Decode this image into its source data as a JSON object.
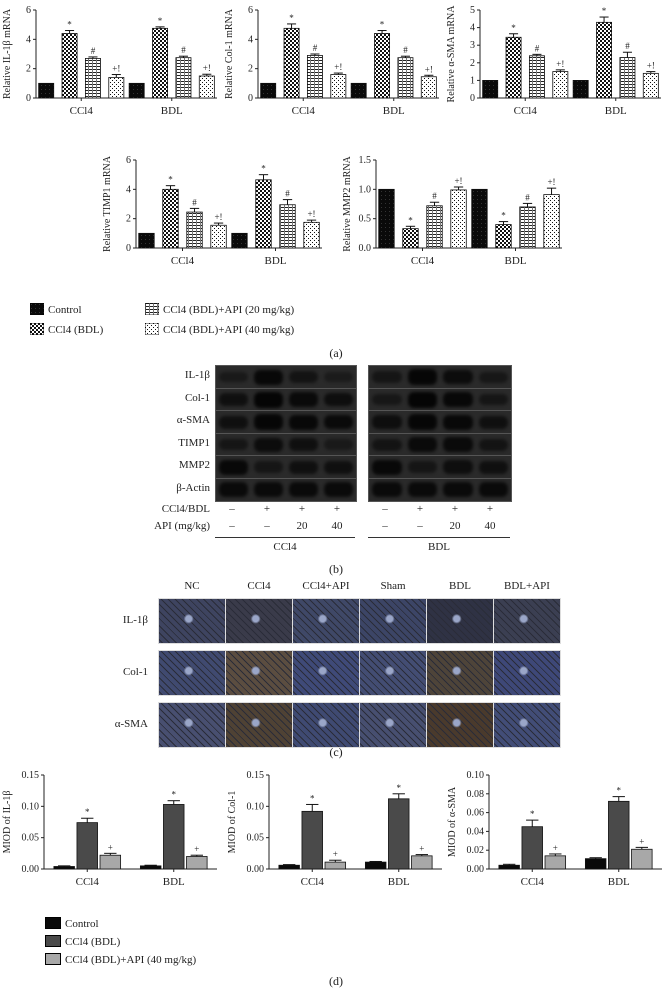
{
  "panels": {
    "a": {
      "caption": "(a)",
      "legend": [
        {
          "label": "Control",
          "pattern": "solid-black"
        },
        {
          "label": "CCl4 (BDL)",
          "pattern": "checker"
        },
        {
          "label": "CCl4 (BDL)+API (20 mg/kg)",
          "pattern": "hstripes"
        },
        {
          "label": "CCl4 (BDL)+API (40 mg/kg)",
          "pattern": "dots"
        }
      ]
    },
    "b": {
      "caption": "(b)",
      "proteins": [
        "IL-1β",
        "Col-1",
        "α-SMA",
        "TIMP1",
        "MMP2",
        "β-Actin"
      ],
      "row_labels": {
        "ccl4_bdl": "CCl4/BDL",
        "api": "API (mg/kg)"
      },
      "ccl4_bdl_signs": [
        "–",
        "+",
        "+",
        "+"
      ],
      "api_doses": [
        "–",
        "–",
        "20",
        "40"
      ],
      "groups": [
        "CCl4",
        "BDL"
      ]
    },
    "c": {
      "caption": "(c)",
      "columns": [
        "NC",
        "CCl4",
        "CCl4+API",
        "Sham",
        "BDL",
        "BDL+API"
      ],
      "rows": [
        "IL-1β",
        "Col-1",
        "α-SMA"
      ]
    },
    "d": {
      "caption": "(d)",
      "legend": [
        {
          "label": "Control",
          "color": "#0a0a0a"
        },
        {
          "label": "CCl4 (BDL)",
          "color": "#4a4a4a"
        },
        {
          "label": "CCl4 (BDL)+API (40 mg/kg)",
          "color": "#a8a8a8"
        }
      ]
    }
  },
  "chart_data": [
    {
      "id": "il1b-mrna",
      "panel": "a",
      "type": "bar",
      "ylabel": "Relative IL-1β mRNA",
      "ylim": [
        0,
        6
      ],
      "yticks": [
        0,
        2,
        4,
        6
      ],
      "categories": [
        "CCl4",
        "BDL"
      ],
      "series": [
        {
          "name": "Control",
          "values": [
            1.0,
            1.0
          ],
          "errors": [
            0,
            0
          ],
          "marks": [
            "",
            ""
          ]
        },
        {
          "name": "CCl4 (BDL)",
          "values": [
            4.4,
            4.75
          ],
          "errors": [
            0.2,
            0.1
          ],
          "marks": [
            "*",
            "*"
          ]
        },
        {
          "name": "CCl4 (BDL)+API (20 mg/kg)",
          "values": [
            2.7,
            2.75
          ],
          "errors": [
            0.1,
            0.1
          ],
          "marks": [
            "#",
            "#"
          ]
        },
        {
          "name": "CCl4 (BDL)+API (40 mg/kg)",
          "values": [
            1.4,
            1.5
          ],
          "errors": [
            0.2,
            0.12
          ],
          "marks": [
            "+!",
            "+!"
          ]
        }
      ]
    },
    {
      "id": "col1-mrna",
      "panel": "a",
      "type": "bar",
      "ylabel": "Relative Col-1 mRNA",
      "ylim": [
        0,
        6
      ],
      "yticks": [
        0,
        2,
        4,
        6
      ],
      "categories": [
        "CCl4",
        "BDL"
      ],
      "series": [
        {
          "name": "Control",
          "values": [
            1.0,
            1.0
          ],
          "errors": [
            0,
            0
          ],
          "marks": [
            "",
            ""
          ]
        },
        {
          "name": "CCl4 (BDL)",
          "values": [
            4.75,
            4.4
          ],
          "errors": [
            0.3,
            0.2
          ],
          "marks": [
            "*",
            "*"
          ]
        },
        {
          "name": "CCl4 (BDL)+API (20 mg/kg)",
          "values": [
            2.9,
            2.75
          ],
          "errors": [
            0.1,
            0.1
          ],
          "marks": [
            "#",
            "#"
          ]
        },
        {
          "name": "CCl4 (BDL)+API (40 mg/kg)",
          "values": [
            1.6,
            1.45
          ],
          "errors": [
            0.1,
            0.1
          ],
          "marks": [
            "+!",
            "+!"
          ]
        }
      ]
    },
    {
      "id": "asma-mrna",
      "panel": "a",
      "type": "bar",
      "ylabel": "Relative α-SMA mRNA",
      "ylim": [
        0,
        5
      ],
      "yticks": [
        0,
        1,
        2,
        3,
        4,
        5
      ],
      "categories": [
        "CCl4",
        "BDL"
      ],
      "series": [
        {
          "name": "Control",
          "values": [
            1.0,
            1.0
          ],
          "errors": [
            0,
            0
          ],
          "marks": [
            "",
            ""
          ]
        },
        {
          "name": "CCl4 (BDL)",
          "values": [
            3.45,
            4.3
          ],
          "errors": [
            0.2,
            0.3
          ],
          "marks": [
            "*",
            "*"
          ]
        },
        {
          "name": "CCl4 (BDL)+API (20 mg/kg)",
          "values": [
            2.4,
            2.3
          ],
          "errors": [
            0.08,
            0.3
          ],
          "marks": [
            "#",
            "#"
          ]
        },
        {
          "name": "CCl4 (BDL)+API (40 mg/kg)",
          "values": [
            1.5,
            1.4
          ],
          "errors": [
            0.1,
            0.1
          ],
          "marks": [
            "+!",
            "+!"
          ]
        }
      ]
    },
    {
      "id": "timp1-mrna",
      "panel": "a",
      "type": "bar",
      "ylabel": "Relative TIMP1 mRNA",
      "ylim": [
        0,
        6
      ],
      "yticks": [
        0,
        2,
        4,
        6
      ],
      "categories": [
        "CCl4",
        "BDL"
      ],
      "series": [
        {
          "name": "Control",
          "values": [
            1.0,
            1.0
          ],
          "errors": [
            0,
            0
          ],
          "marks": [
            "",
            ""
          ]
        },
        {
          "name": "CCl4 (BDL)",
          "values": [
            4.0,
            4.65
          ],
          "errors": [
            0.25,
            0.35
          ],
          "marks": [
            "*",
            "*"
          ]
        },
        {
          "name": "CCl4 (BDL)+API (20 mg/kg)",
          "values": [
            2.45,
            2.95
          ],
          "errors": [
            0.25,
            0.35
          ],
          "marks": [
            "#",
            "#"
          ]
        },
        {
          "name": "CCl4 (BDL)+API (40 mg/kg)",
          "values": [
            1.55,
            1.75
          ],
          "errors": [
            0.15,
            0.15
          ],
          "marks": [
            "+!",
            "+!"
          ]
        }
      ]
    },
    {
      "id": "mmp2-mrna",
      "panel": "a",
      "type": "bar",
      "ylabel": "Relative MMP2 mRNA",
      "ylim": [
        0,
        1.5
      ],
      "yticks": [
        0.0,
        0.5,
        1.0,
        1.5
      ],
      "tick_decimals": 1,
      "categories": [
        "CCl4",
        "BDL"
      ],
      "series": [
        {
          "name": "Control",
          "values": [
            1.0,
            1.0
          ],
          "errors": [
            0,
            0
          ],
          "marks": [
            "",
            ""
          ]
        },
        {
          "name": "CCl4 (BDL)",
          "values": [
            0.33,
            0.4
          ],
          "errors": [
            0.04,
            0.05
          ],
          "marks": [
            "*",
            "*"
          ]
        },
        {
          "name": "CCl4 (BDL)+API (20 mg/kg)",
          "values": [
            0.72,
            0.7
          ],
          "errors": [
            0.06,
            0.06
          ],
          "marks": [
            "#",
            "#"
          ]
        },
        {
          "name": "CCl4 (BDL)+API (40 mg/kg)",
          "values": [
            0.99,
            0.91
          ],
          "errors": [
            0.05,
            0.11
          ],
          "marks": [
            "+!",
            "+!"
          ]
        }
      ]
    },
    {
      "id": "miod-il1b",
      "panel": "d",
      "type": "bar",
      "ylabel": "MIOD of IL-1β",
      "ylim": [
        0,
        0.15
      ],
      "yticks": [
        0.0,
        0.05,
        0.1,
        0.15
      ],
      "tick_decimals": 2,
      "categories": [
        "CCl4",
        "BDL"
      ],
      "series": [
        {
          "name": "Control",
          "values": [
            0.004,
            0.005
          ],
          "errors": [
            0.001,
            0.001
          ],
          "marks": [
            "",
            ""
          ]
        },
        {
          "name": "CCl4 (BDL)",
          "values": [
            0.074,
            0.103
          ],
          "errors": [
            0.007,
            0.006
          ],
          "marks": [
            "*",
            "*"
          ]
        },
        {
          "name": "CCl4 (BDL)+API (40 mg/kg)",
          "values": [
            0.022,
            0.02
          ],
          "errors": [
            0.003,
            0.002
          ],
          "marks": [
            "+",
            "+"
          ]
        }
      ]
    },
    {
      "id": "miod-col1",
      "panel": "d",
      "type": "bar",
      "ylabel": "MIOD of Col-1",
      "ylim": [
        0,
        0.15
      ],
      "yticks": [
        0.0,
        0.05,
        0.1,
        0.15
      ],
      "tick_decimals": 2,
      "categories": [
        "CCl4",
        "BDL"
      ],
      "series": [
        {
          "name": "Control",
          "values": [
            0.006,
            0.011
          ],
          "errors": [
            0.001,
            0.001
          ],
          "marks": [
            "",
            ""
          ]
        },
        {
          "name": "CCl4 (BDL)",
          "values": [
            0.092,
            0.112
          ],
          "errors": [
            0.011,
            0.008
          ],
          "marks": [
            "*",
            "*"
          ]
        },
        {
          "name": "CCl4 (BDL)+API (40 mg/kg)",
          "values": [
            0.011,
            0.021
          ],
          "errors": [
            0.003,
            0.002
          ],
          "marks": [
            "+",
            "+"
          ]
        }
      ]
    },
    {
      "id": "miod-asma",
      "panel": "d",
      "type": "bar",
      "ylabel": "MIOD of α-SMA",
      "ylim": [
        0,
        0.1
      ],
      "yticks": [
        0.0,
        0.02,
        0.04,
        0.06,
        0.08,
        0.1
      ],
      "tick_decimals": 2,
      "categories": [
        "CCl4",
        "BDL"
      ],
      "series": [
        {
          "name": "Control",
          "values": [
            0.004,
            0.011
          ],
          "errors": [
            0.001,
            0.001
          ],
          "marks": [
            "",
            ""
          ]
        },
        {
          "name": "CCl4 (BDL)",
          "values": [
            0.045,
            0.072
          ],
          "errors": [
            0.007,
            0.005
          ],
          "marks": [
            "*",
            "*"
          ]
        },
        {
          "name": "CCl4 (BDL)+API (40 mg/kg)",
          "values": [
            0.014,
            0.021
          ],
          "errors": [
            0.002,
            0.002
          ],
          "marks": [
            "+",
            "+"
          ]
        }
      ]
    }
  ]
}
